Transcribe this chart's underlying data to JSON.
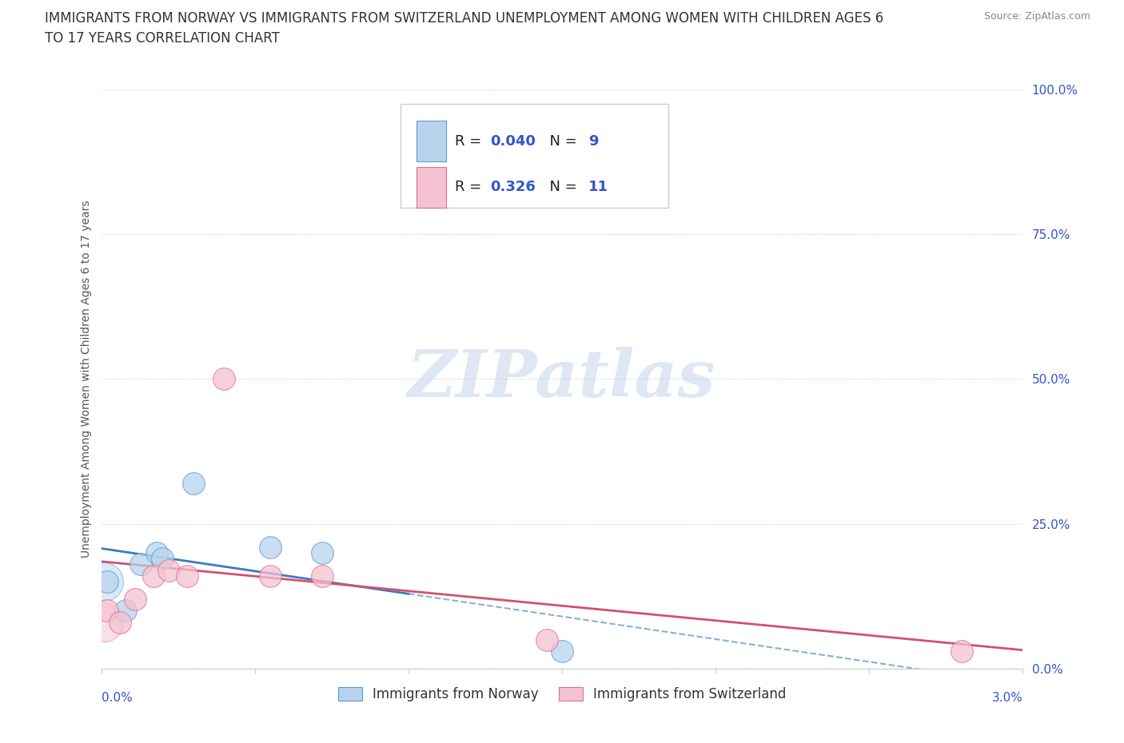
{
  "title_line1": "IMMIGRANTS FROM NORWAY VS IMMIGRANTS FROM SWITZERLAND UNEMPLOYMENT AMONG WOMEN WITH CHILDREN AGES 6",
  "title_line2": "TO 17 YEARS CORRELATION CHART",
  "source": "Source: ZipAtlas.com",
  "ylabel": "Unemployment Among Women with Children Ages 6 to 17 years",
  "xlim": [
    0.0,
    3.0
  ],
  "ylim": [
    0.0,
    100.0
  ],
  "norway": {
    "label": "Immigrants from Norway",
    "R": 0.04,
    "N": 9,
    "fill_color": "#b8d4ec",
    "edge_color": "#5b9bd5",
    "line_color": "#3a7bbf",
    "x": [
      0.02,
      0.08,
      0.13,
      0.18,
      0.2,
      0.3,
      0.55,
      0.72,
      1.5
    ],
    "y": [
      15.0,
      10.0,
      18.0,
      20.0,
      19.0,
      32.0,
      21.0,
      20.0,
      3.0
    ]
  },
  "switzerland": {
    "label": "Immigrants from Switzerland",
    "R": 0.326,
    "N": 11,
    "fill_color": "#f4c2d0",
    "edge_color": "#e07090",
    "line_color": "#d45070",
    "x": [
      0.02,
      0.06,
      0.11,
      0.17,
      0.22,
      0.28,
      0.4,
      0.55,
      0.72,
      1.45,
      2.8
    ],
    "y": [
      10.0,
      8.0,
      12.0,
      16.0,
      17.0,
      16.0,
      50.0,
      16.0,
      16.0,
      5.0,
      3.0
    ]
  },
  "background_color": "#ffffff",
  "grid_color": "#d0d0d0",
  "watermark_text": "ZIPatlas",
  "watermark_color": "#c8d8ec",
  "title_fontsize": 12,
  "axis_label_fontsize": 10,
  "tick_fontsize": 11,
  "source_fontsize": 9,
  "legend_fontsize": 13,
  "blue_color": "#3355cc",
  "text_color": "#333333",
  "gray_color": "#888888"
}
